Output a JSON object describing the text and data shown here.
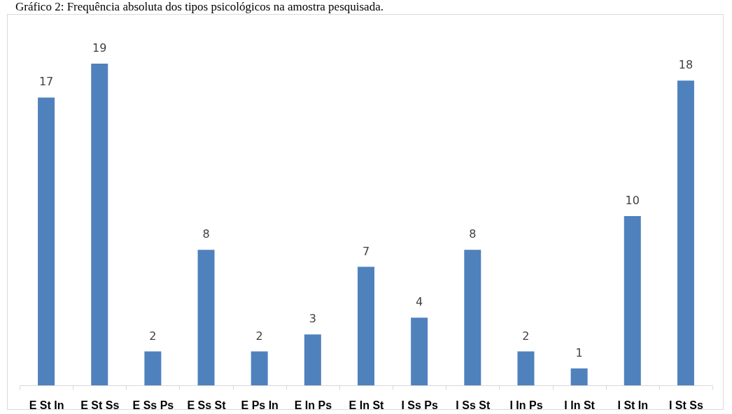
{
  "chart_data": {
    "type": "bar",
    "title": "Gráfico 2: Frequência absoluta dos tipos psicológicos na amostra pesquisada.",
    "categories": [
      "E St In",
      "E St Ss",
      "E Ss Ps",
      "E Ss St",
      "E Ps In",
      "E In Ps",
      "E In St",
      "I Ss Ps",
      "I Ss St",
      "I In Ps",
      "I In St",
      "I St In",
      "I St Ss"
    ],
    "values": [
      17,
      19,
      2,
      8,
      2,
      3,
      7,
      4,
      8,
      2,
      1,
      10,
      18
    ],
    "color": "#4f81bd",
    "data_labels": true
  }
}
